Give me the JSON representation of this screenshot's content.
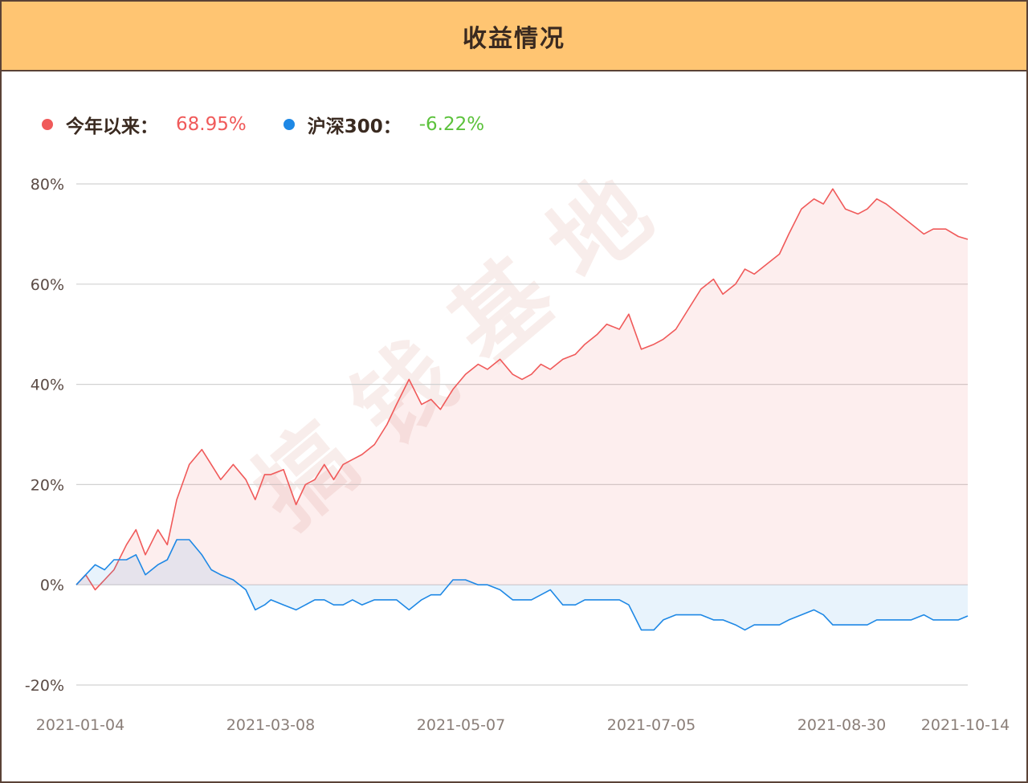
{
  "header": {
    "title": "收益情况"
  },
  "legend": [
    {
      "label": "今年以来：",
      "value": "68.95%",
      "color": "#f05a5a",
      "value_color": "#f05a5a"
    },
    {
      "label": "沪深300：",
      "value": "-6.22%",
      "color": "#1e88e5",
      "value_color": "#5cc23c"
    }
  ],
  "watermark": "搞 钱 基 地",
  "chart_data": {
    "type": "area",
    "title": "",
    "xlabel": "",
    "ylabel": "",
    "ylim": [
      -20,
      80
    ],
    "y_ticks": [
      "80%",
      "60%",
      "40%",
      "20%",
      "0%",
      "-20%"
    ],
    "x_ticks": [
      "2021-01-04",
      "2021-03-08",
      "2021-05-07",
      "2021-07-05",
      "2021-08-30",
      "2021-10-14"
    ],
    "grid": true,
    "legend_position": "top-left",
    "x": [
      0,
      3,
      6,
      9,
      12,
      16,
      19,
      22,
      26,
      29,
      32,
      36,
      40,
      43,
      46,
      50,
      54,
      57,
      60,
      62,
      66,
      70,
      73,
      76,
      79,
      82,
      85,
      88,
      91,
      95,
      99,
      102,
      106,
      110,
      113,
      116,
      120,
      124,
      128,
      131,
      135,
      139,
      142,
      145,
      148,
      151,
      155,
      159,
      162,
      166,
      169,
      173,
      176,
      180,
      184,
      187,
      191,
      195,
      199,
      203,
      206,
      210,
      213,
      216,
      220,
      224,
      227,
      231,
      235,
      238,
      241,
      245,
      249,
      252,
      255,
      258,
      262,
      266,
      270,
      273,
      277,
      281,
      284
    ],
    "series": [
      {
        "name": "今年以来",
        "color": "#f05a5a",
        "values": [
          0,
          2,
          -1,
          1,
          3,
          8,
          11,
          6,
          11,
          8,
          17,
          24,
          27,
          24,
          21,
          24,
          21,
          17,
          22,
          22,
          23,
          16,
          20,
          21,
          24,
          21,
          24,
          25,
          26,
          28,
          32,
          36,
          41,
          36,
          37,
          35,
          39,
          42,
          44,
          43,
          45,
          42,
          41,
          42,
          44,
          43,
          45,
          46,
          48,
          50,
          52,
          51,
          54,
          47,
          48,
          49,
          51,
          55,
          59,
          61,
          58,
          60,
          63,
          62,
          64,
          66,
          70,
          75,
          77,
          76,
          79,
          75,
          74,
          75,
          77,
          76,
          74,
          72,
          70,
          71,
          71,
          69.5,
          68.95
        ]
      },
      {
        "name": "沪深300",
        "color": "#1e88e5",
        "values": [
          0,
          2,
          4,
          3,
          5,
          5,
          6,
          2,
          4,
          5,
          9,
          9,
          6,
          3,
          2,
          1,
          -1,
          -5,
          -4,
          -3,
          -4,
          -5,
          -4,
          -3,
          -3,
          -4,
          -4,
          -3,
          -4,
          -3,
          -3,
          -3,
          -5,
          -3,
          -2,
          -2,
          1,
          1,
          0,
          0,
          -1,
          -3,
          -3,
          -3,
          -2,
          -1,
          -4,
          -4,
          -3,
          -3,
          -3,
          -3,
          -4,
          -9,
          -9,
          -7,
          -6,
          -6,
          -6,
          -7,
          -7,
          -8,
          -9,
          -8,
          -8,
          -8,
          -7,
          -6,
          -5,
          -6,
          -8,
          -8,
          -8,
          -8,
          -7,
          -7,
          -7,
          -7,
          -6,
          -7,
          -7,
          -7,
          -6.22
        ]
      }
    ]
  }
}
